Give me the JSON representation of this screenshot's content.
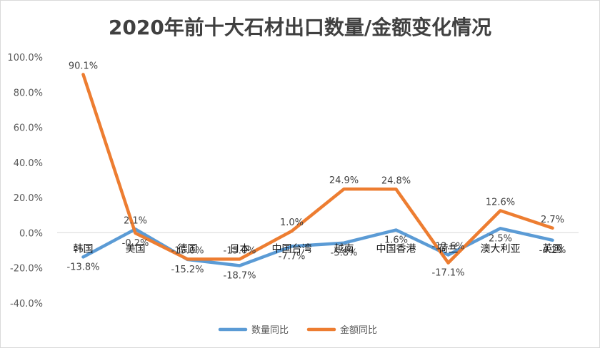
{
  "chart_data": {
    "type": "line",
    "title": "2020年前十大石材出口数量/金额变化情况",
    "categories": [
      "韩国",
      "美国",
      "德国",
      "日本",
      "中国台湾",
      "越南",
      "中国香港",
      "荷兰",
      "澳大利亚",
      "英国"
    ],
    "series": [
      {
        "name": "数量同比",
        "color": "#5b9bd5",
        "values": [
          -13.8,
          2.1,
          -15.2,
          -18.7,
          -7.7,
          -5.8,
          1.6,
          -12.6,
          2.5,
          -4.2
        ],
        "labels": [
          "-13.8%",
          "2.1%",
          "-15.2%",
          "-18.7%",
          "-7.7%",
          "-5.8%",
          "1.6%",
          "-12.6%",
          "2.5%",
          "-4.2%"
        ]
      },
      {
        "name": "金额同比",
        "color": "#ed7d31",
        "values": [
          90.1,
          -0.2,
          -15.0,
          -15.0,
          1.0,
          24.9,
          24.8,
          -17.1,
          12.6,
          2.7
        ],
        "labels": [
          "90.1%",
          "-0.2%",
          "-15.0%",
          "-15.0%",
          "1.0%",
          "24.9%",
          "24.8%",
          "-17.1%",
          "12.6%",
          "2.7%"
        ]
      }
    ],
    "y_ticks": [
      "100.0%",
      "80.0%",
      "60.0%",
      "40.0%",
      "20.0%",
      "0.0%",
      "-20.0%",
      "-40.0%"
    ],
    "ylim": [
      -40,
      100
    ],
    "grid": false,
    "legend_position": "bottom"
  }
}
